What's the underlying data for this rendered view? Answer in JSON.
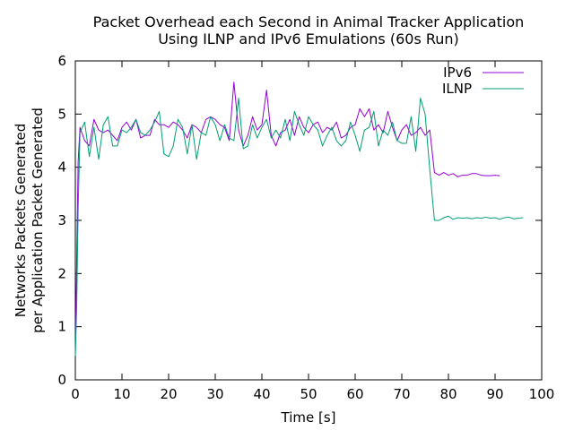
{
  "chart_data": {
    "type": "line",
    "title_lines": [
      "Packet Overhead each Second in Animal Tracker Application",
      "Using ILNP and IPv6 Emulations (60s Run)"
    ],
    "xlabel": "Time [s]",
    "ylabel_lines": [
      "Networks Packets Generated",
      "per Application Packet Generated"
    ],
    "xlim": [
      0,
      100
    ],
    "ylim": [
      0,
      6
    ],
    "xticks": [
      0,
      10,
      20,
      30,
      40,
      50,
      60,
      70,
      80,
      90,
      100
    ],
    "yticks": [
      0,
      1,
      2,
      3,
      4,
      5,
      6
    ],
    "grid": false,
    "legend_position": "top-right",
    "series": [
      {
        "name": "IPv6",
        "color": "#9400d3",
        "x": [
          0,
          0.3,
          0.6,
          1,
          2,
          3,
          4,
          5,
          6,
          7,
          8,
          9,
          10,
          11,
          12,
          13,
          14,
          15,
          16,
          17,
          18,
          19,
          20,
          21,
          22,
          23,
          24,
          25,
          26,
          27,
          28,
          29,
          30,
          31,
          32,
          33,
          34,
          35,
          36,
          37,
          38,
          39,
          40,
          41,
          42,
          43,
          44,
          45,
          46,
          47,
          48,
          49,
          50,
          51,
          52,
          53,
          54,
          55,
          56,
          57,
          58,
          59,
          60,
          61,
          62,
          63,
          64,
          65,
          66,
          67,
          68,
          69,
          70,
          71,
          72,
          73,
          74,
          75,
          76,
          77,
          78,
          79,
          80,
          81,
          82,
          83,
          84,
          85,
          86,
          87,
          88,
          89,
          90,
          91
        ],
        "values": [
          0.45,
          2.3,
          4.1,
          4.75,
          4.5,
          4.4,
          4.9,
          4.7,
          4.65,
          4.7,
          4.6,
          4.5,
          4.75,
          4.85,
          4.7,
          4.9,
          4.55,
          4.6,
          4.6,
          4.9,
          4.8,
          4.8,
          4.75,
          4.85,
          4.8,
          4.7,
          4.55,
          4.8,
          4.75,
          4.65,
          4.9,
          4.95,
          4.9,
          4.8,
          4.75,
          4.5,
          5.6,
          4.7,
          4.4,
          4.6,
          4.95,
          4.7,
          4.8,
          5.45,
          4.6,
          4.4,
          4.65,
          4.7,
          4.9,
          4.6,
          4.95,
          4.75,
          4.65,
          4.8,
          4.85,
          4.65,
          4.75,
          4.7,
          4.85,
          4.55,
          4.6,
          4.75,
          4.8,
          5.1,
          4.95,
          5.1,
          4.7,
          4.8,
          4.65,
          5.05,
          4.75,
          4.5,
          4.7,
          4.8,
          4.6,
          4.65,
          4.75,
          4.6,
          4.7,
          3.9,
          3.85,
          3.9,
          3.85,
          3.88,
          3.82,
          3.85,
          3.85,
          3.88,
          3.88,
          3.85,
          3.84,
          3.84,
          3.85,
          3.84
        ]
      },
      {
        "name": "ILNP",
        "color": "#009e73",
        "x": [
          0,
          0.3,
          0.6,
          1,
          2,
          3,
          4,
          5,
          6,
          7,
          8,
          9,
          10,
          11,
          12,
          13,
          14,
          15,
          16,
          17,
          18,
          19,
          20,
          21,
          22,
          23,
          24,
          25,
          26,
          27,
          28,
          29,
          30,
          31,
          32,
          33,
          34,
          35,
          36,
          37,
          38,
          39,
          40,
          41,
          42,
          43,
          44,
          45,
          46,
          47,
          48,
          49,
          50,
          51,
          52,
          53,
          54,
          55,
          56,
          57,
          58,
          59,
          60,
          61,
          62,
          63,
          64,
          65,
          66,
          67,
          68,
          69,
          70,
          71,
          72,
          73,
          74,
          75,
          76,
          77,
          78,
          79,
          80,
          81,
          82,
          83,
          84,
          85,
          86,
          87,
          88,
          89,
          90,
          91,
          92,
          93,
          94,
          95,
          96
        ],
        "values": [
          0.45,
          1.4,
          3.2,
          4.65,
          4.85,
          4.2,
          4.75,
          4.15,
          4.8,
          4.95,
          4.4,
          4.4,
          4.7,
          4.65,
          4.75,
          4.9,
          4.65,
          4.6,
          4.7,
          4.85,
          5.05,
          4.25,
          4.2,
          4.4,
          4.9,
          4.75,
          4.25,
          4.8,
          4.15,
          4.65,
          4.6,
          4.95,
          4.8,
          4.5,
          4.8,
          4.55,
          4.5,
          5.3,
          4.35,
          4.4,
          4.8,
          4.55,
          4.75,
          4.9,
          4.55,
          4.7,
          4.55,
          4.9,
          4.5,
          5.05,
          4.8,
          4.6,
          4.95,
          4.8,
          4.7,
          4.4,
          4.6,
          4.75,
          4.5,
          4.4,
          4.5,
          4.85,
          4.6,
          4.3,
          4.7,
          4.75,
          5.05,
          4.4,
          4.7,
          4.6,
          4.85,
          4.5,
          4.45,
          4.45,
          4.95,
          4.3,
          5.3,
          5.0,
          3.95,
          3.0,
          3.0,
          3.05,
          3.08,
          3.02,
          3.05,
          3.04,
          3.05,
          3.03,
          3.05,
          3.04,
          3.06,
          3.04,
          3.05,
          3.02,
          3.05,
          3.06,
          3.03,
          3.04,
          3.05
        ]
      }
    ]
  }
}
